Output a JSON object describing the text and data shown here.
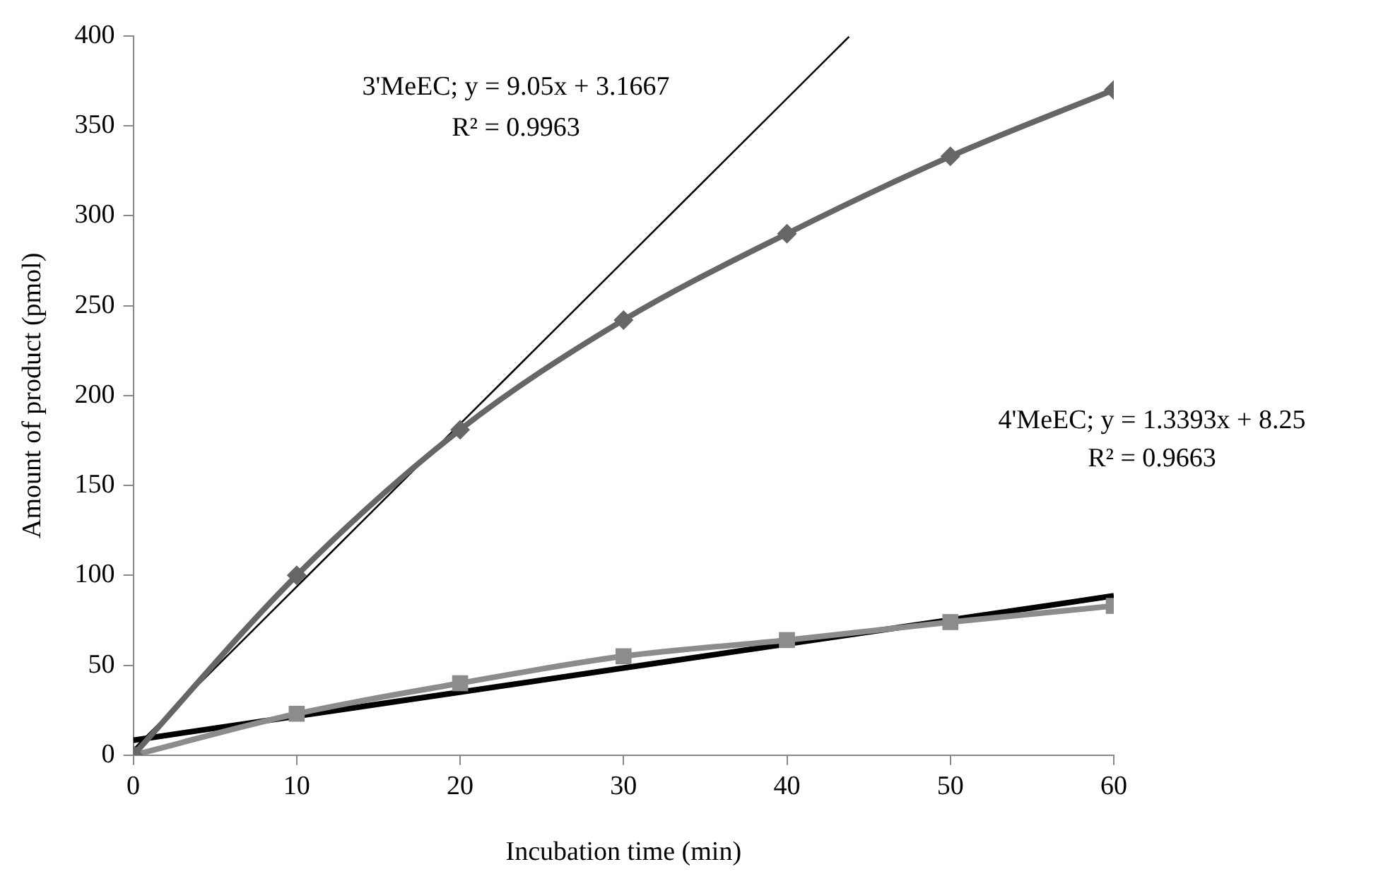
{
  "chart_data": {
    "type": "line",
    "xlabel": "Incubation time (min)",
    "ylabel": "Amount of product (pmol)",
    "xlim": [
      0,
      60
    ],
    "xticks": [
      0,
      10,
      20,
      30,
      40,
      50,
      60
    ],
    "ylim": [
      0,
      400
    ],
    "yticks": [
      0,
      50,
      100,
      150,
      200,
      250,
      300,
      350,
      400
    ],
    "grid": false,
    "legend": false,
    "series": [
      {
        "color": "#666666",
        "marker": "diamond",
        "x": [
          0,
          10,
          20,
          30,
          40,
          50,
          60
        ],
        "values": [
          0,
          100,
          181,
          242,
          290,
          333,
          370
        ]
      },
      {
        "color": "#8c8c8c",
        "marker": "square",
        "x": [
          0,
          10,
          20,
          30,
          40,
          50,
          60
        ],
        "values": [
          0,
          23,
          40,
          55,
          64,
          74,
          83
        ]
      },
      {
        "color": "#000000",
        "marker": "none",
        "x": [
          0,
          43.8
        ],
        "values": [
          3.2,
          399.6
        ]
      },
      {
        "color": "#000000",
        "marker": "none",
        "x": [
          0,
          60
        ],
        "values": [
          8.3,
          88.6
        ]
      }
    ],
    "annotations": [
      "3'MeEC; y = 9.05x + 3.1667",
      "R² = 0.9963",
      "4'MeEC; y = 1.3393x + 8.25",
      "R² = 0.9663"
    ]
  }
}
